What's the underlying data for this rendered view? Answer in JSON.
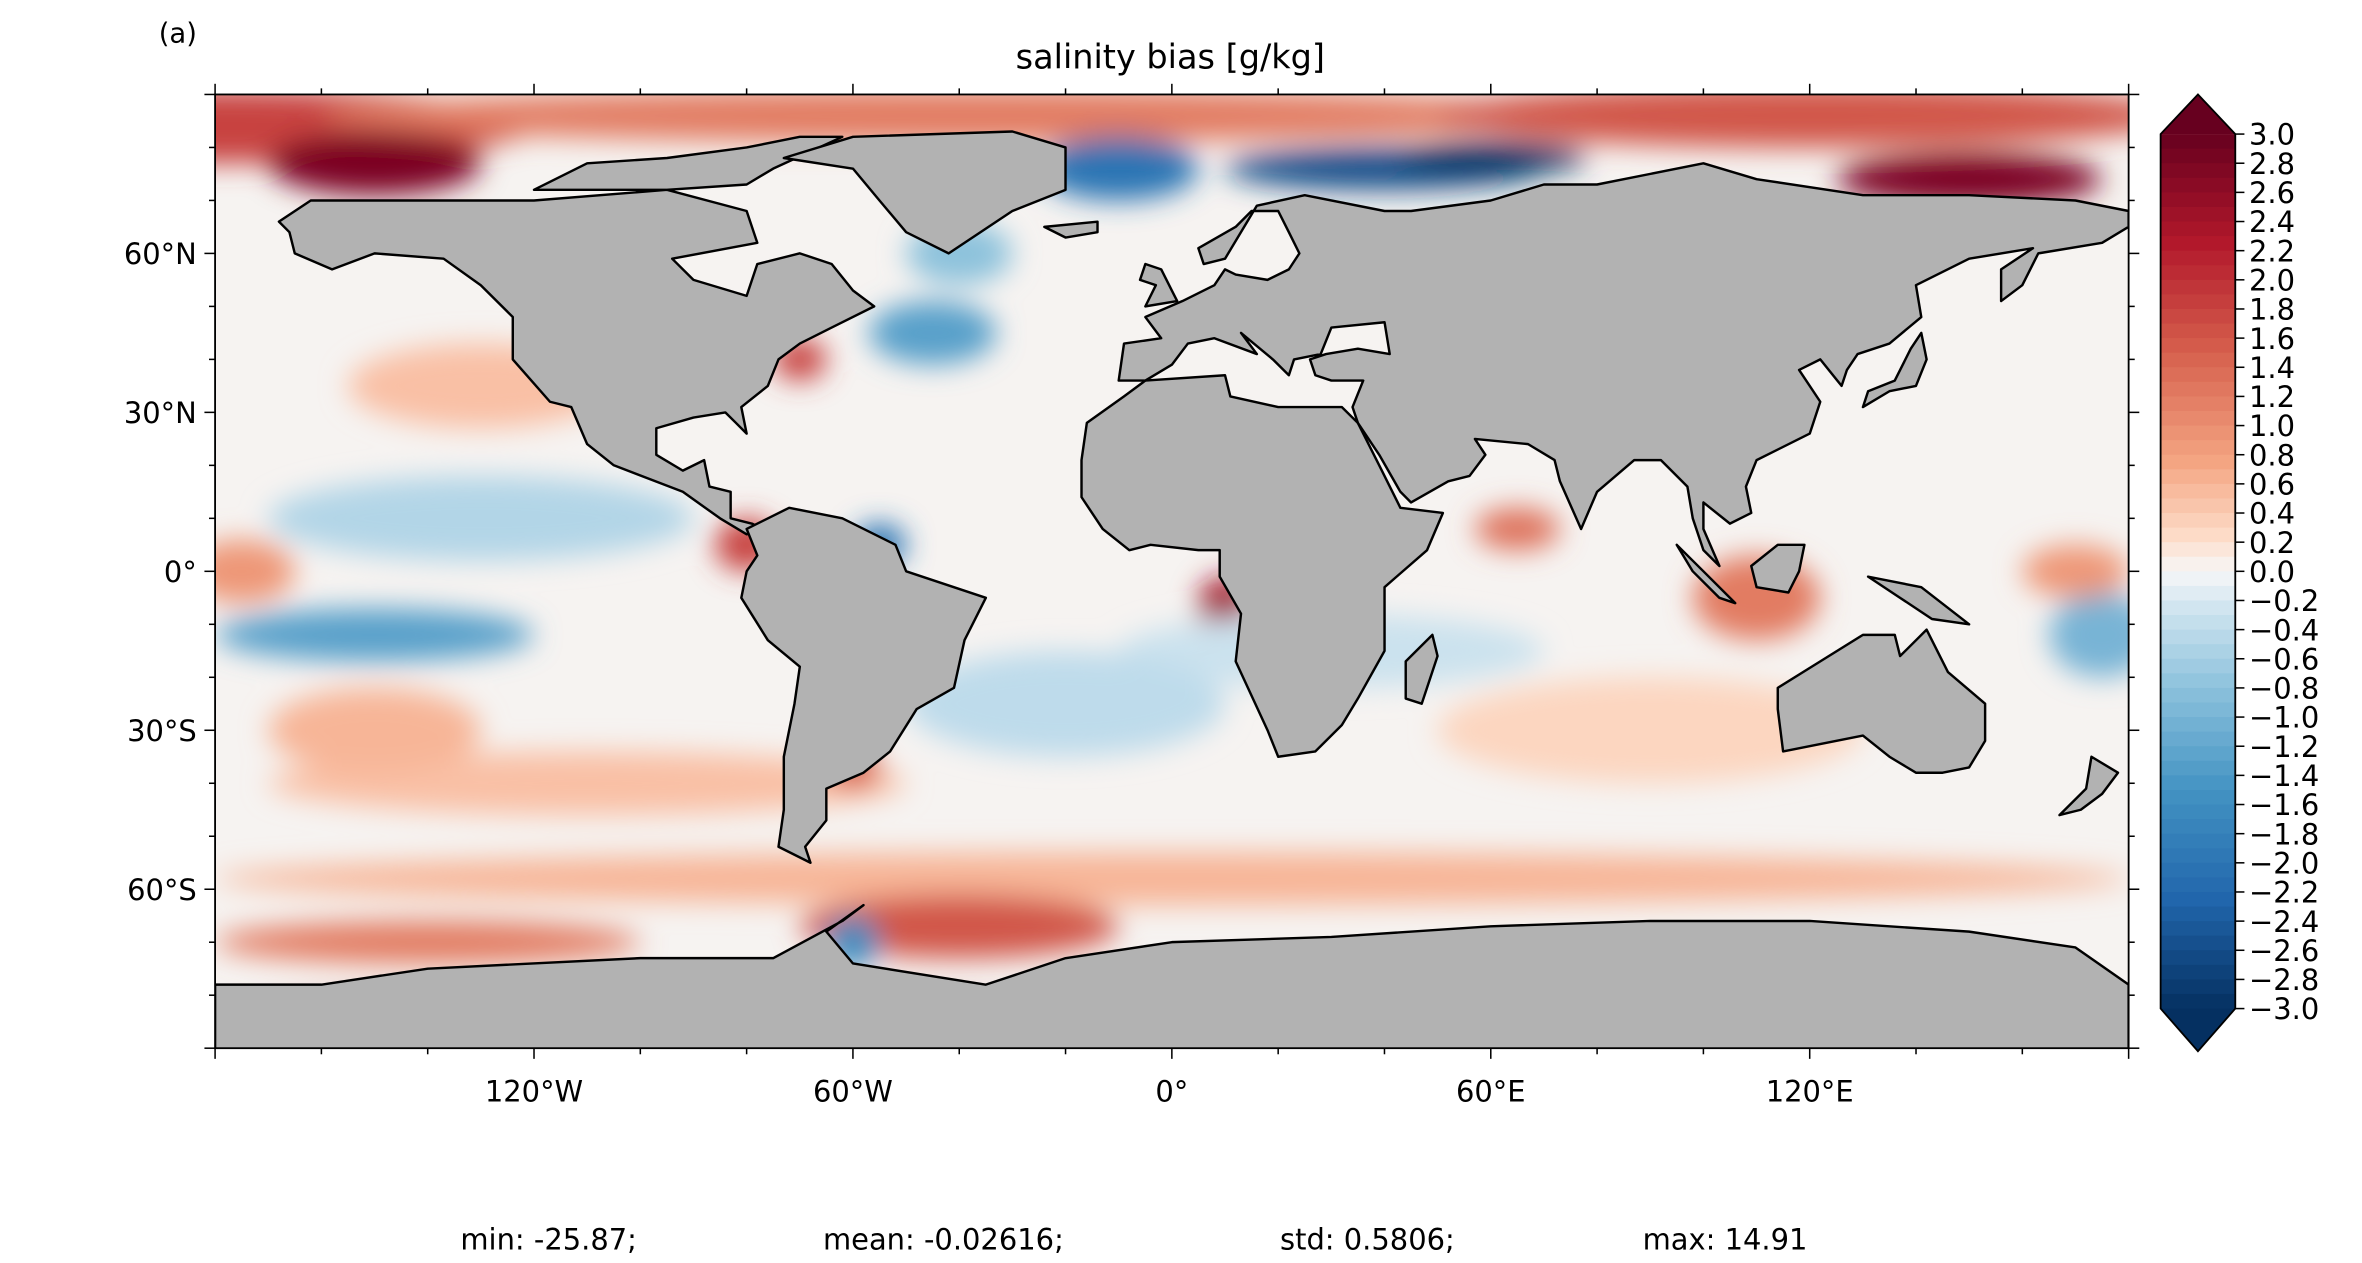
{
  "chart_data": {
    "type": "heatmap",
    "panel_label": "(a)",
    "title": "salinity bias [g/kg]",
    "projection": "plate-carree",
    "colormap": "RdBu_r",
    "extend": "both",
    "x_range": [
      -180,
      180
    ],
    "y_range": [
      -90,
      90
    ],
    "x_ticks": [
      {
        "value": -120,
        "label": "120°W"
      },
      {
        "value": -60,
        "label": "60°W"
      },
      {
        "value": 0,
        "label": "0°"
      },
      {
        "value": 60,
        "label": "60°E"
      },
      {
        "value": 120,
        "label": "120°E"
      }
    ],
    "y_ticks": [
      {
        "value": 60,
        "label": "60°N"
      },
      {
        "value": 30,
        "label": "30°N"
      },
      {
        "value": 0,
        "label": "0°"
      },
      {
        "value": -30,
        "label": "30°S"
      },
      {
        "value": -60,
        "label": "60°S"
      }
    ],
    "colorbar": {
      "range": [
        -3.0,
        3.0
      ],
      "levels_step": 0.1,
      "tick_labels": [
        "3.0",
        "2.8",
        "2.6",
        "2.4",
        "2.2",
        "2.0",
        "1.8",
        "1.6",
        "1.4",
        "1.2",
        "1.0",
        "0.8",
        "0.6",
        "0.4",
        "0.2",
        "0.0",
        "−0.2",
        "−0.4",
        "−0.6",
        "−0.8",
        "−1.0",
        "−1.2",
        "−1.4",
        "−1.6",
        "−1.8",
        "−2.0",
        "−2.2",
        "−2.4",
        "−2.6",
        "−2.8",
        "−3.0"
      ]
    },
    "stats": {
      "min": "min: -25.87;",
      "mean": "mean: -0.02616;",
      "std": "std: 0.5806;",
      "max": "max: 14.91"
    },
    "colors": {
      "land": "#b2b2b2",
      "coast": "#000000",
      "neutral": "#f7f4f2"
    }
  }
}
